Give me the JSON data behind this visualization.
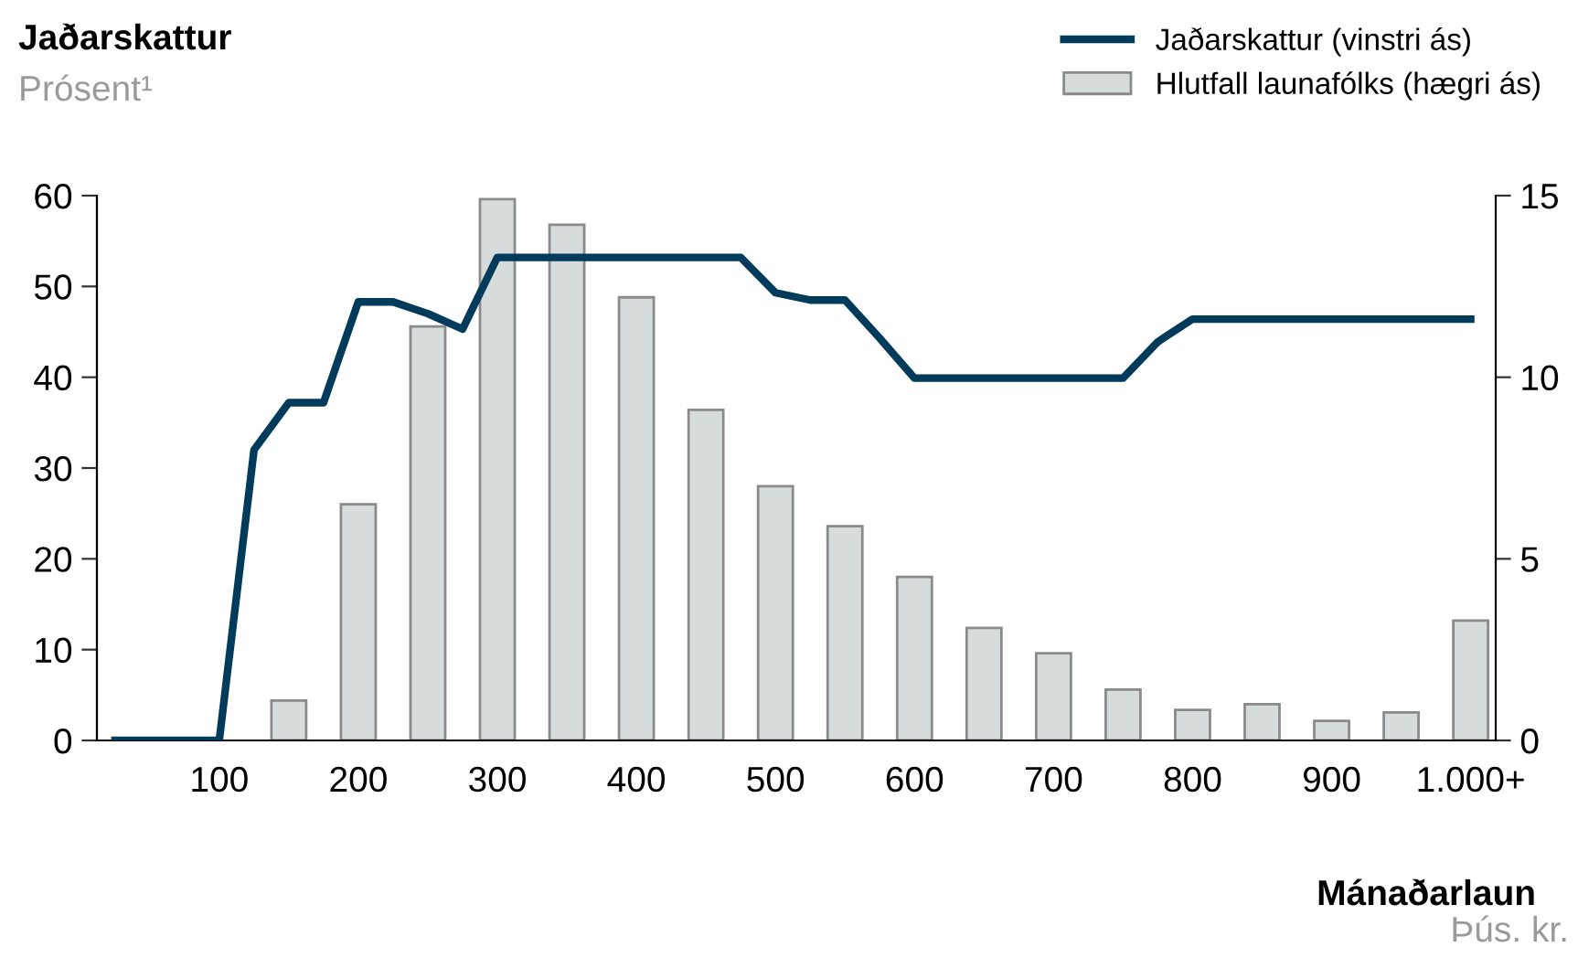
{
  "chart_data": {
    "type": "line",
    "title": "Jaðarskattur",
    "subtitle": "Prósent¹",
    "xlabel": "Mánaðarlaun",
    "annotations": [
      "Þús. kr."
    ],
    "series": [
      {
        "name": "Jaðarskattur (vinstri ás)",
        "color": "#003b5c",
        "x": [
          25,
          50,
          75,
          100,
          125,
          150,
          175,
          200,
          225,
          250,
          275,
          300,
          325,
          350,
          375,
          400,
          425,
          450,
          475,
          500,
          525,
          550,
          575,
          600,
          625,
          650,
          675,
          700,
          725,
          750,
          775,
          800,
          825,
          850,
          875,
          900,
          925,
          950,
          975,
          1000
        ],
        "values": [
          0,
          0,
          0,
          0,
          32,
          37.2,
          37.2,
          48.3,
          48.3,
          47,
          45.3,
          53.2,
          53.2,
          53.2,
          53.2,
          53.2,
          53.2,
          53.2,
          53.2,
          49.3,
          48.5,
          48.5,
          44.3,
          39.9,
          39.9,
          39.9,
          39.9,
          39.9,
          39.9,
          39.9,
          43.9,
          46.4,
          46.4,
          46.4,
          46.4,
          46.4,
          46.4,
          46.4,
          46.4,
          46.4
        ]
      },
      {
        "name": "Hlutfall launafólks (hægri ás)",
        "type": "bar",
        "axis": "y2",
        "color": "#d6dcdb",
        "x": [
          150,
          200,
          250,
          300,
          350,
          400,
          450,
          500,
          550,
          600,
          650,
          700,
          750,
          800,
          850,
          900,
          950,
          1000
        ],
        "values": [
          1.1,
          6.5,
          11.4,
          14.9,
          14.2,
          12.2,
          9.1,
          7.0,
          5.9,
          4.5,
          3.1,
          2.4,
          1.4,
          0.84,
          1.0,
          0.54,
          0.77,
          3.3
        ]
      }
    ],
    "xlim": [
      12,
      1018
    ],
    "xticks": [
      100,
      200,
      300,
      400,
      500,
      600,
      700,
      800,
      900,
      {
        "value": 1000,
        "label": "1.000+"
      }
    ],
    "ylim": [
      0,
      60
    ],
    "yticks": [
      0,
      10,
      20,
      30,
      40,
      50,
      60
    ],
    "y2lim": [
      0,
      15
    ],
    "y2ticks": [
      0,
      5,
      10,
      15
    ],
    "grid": false,
    "legend": "top right"
  }
}
